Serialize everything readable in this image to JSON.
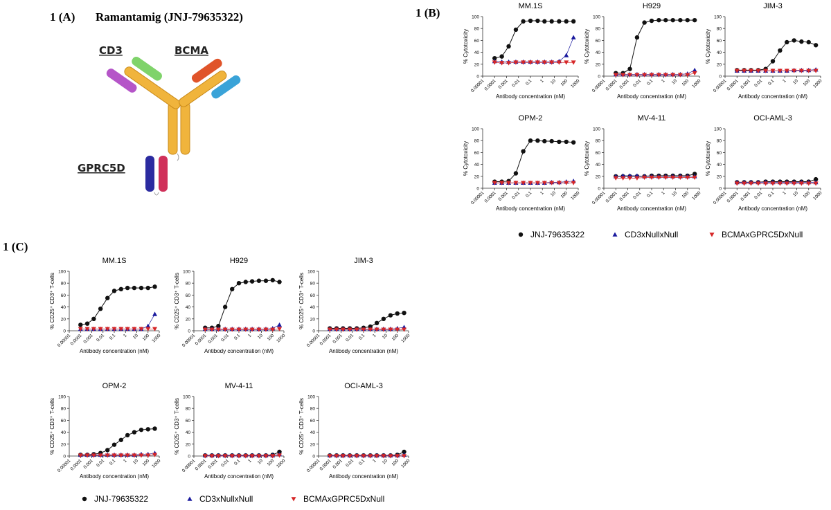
{
  "panel_a": {
    "label": "1 (A)",
    "title": "Ramantamig (JNJ-79635322)",
    "arm_labels": [
      "CD3",
      "BCMA",
      "GPRC5D"
    ]
  },
  "panel_b_label": "1 (B)",
  "panel_c_label": "1 (C)",
  "chart_data": [
    {
      "type": "line",
      "log_x": true,
      "x": [
        0.0001,
        0.0004,
        0.0015,
        0.006,
        0.025,
        0.1,
        0.4,
        1.5,
        6,
        25,
        100,
        400
      ],
      "xlim": [
        1e-05,
        1000
      ],
      "xticks": [
        1e-05,
        0.0001,
        0.001,
        0.01,
        0.1,
        1,
        10,
        100,
        1000
      ],
      "ylim": [
        0,
        100
      ],
      "yticks": [
        0,
        20,
        40,
        60,
        80,
        100
      ],
      "x_label": "Antibody concentration (nM)",
      "y_label": "% Cytotoxicity",
      "series": [
        {
          "name": "JNJ-79635322",
          "color": "#111111",
          "marker": "circle"
        },
        {
          "name": "CD3xNullxNull",
          "color": "#1a1a9e",
          "marker": "triangle-up"
        },
        {
          "name": "BCMAxGPRC5DxNull",
          "color": "#d62728",
          "marker": "triangle-down"
        }
      ],
      "panels": [
        {
          "title": "MM.1S",
          "values": [
            [
              30,
              33,
              50,
              78,
              92,
              93,
              93,
              92,
              92,
              92,
              92,
              92
            ],
            [
              25,
              24,
              24,
              24,
              24,
              24,
              24,
              24,
              24,
              25,
              35,
              65
            ],
            [
              23,
              22,
              22,
              23,
              23,
              23,
              23,
              23,
              23,
              23,
              23,
              23
            ]
          ]
        },
        {
          "title": "H929",
          "values": [
            [
              5,
              5,
              12,
              65,
              90,
              93,
              94,
              94,
              94,
              94,
              94,
              94
            ],
            [
              3,
              3,
              3,
              3,
              3,
              3,
              3,
              3,
              3,
              3,
              4,
              10
            ],
            [
              2,
              2,
              2,
              2,
              2,
              2,
              2,
              2,
              2,
              2,
              2,
              5
            ]
          ]
        },
        {
          "title": "JIM-3",
          "values": [
            [
              10,
              10,
              10,
              10,
              12,
              25,
              43,
              57,
              60,
              58,
              57,
              52
            ],
            [
              9,
              9,
              9,
              9,
              9,
              9,
              9,
              9,
              10,
              10,
              10,
              11
            ],
            [
              9,
              9,
              9,
              9,
              9,
              9,
              9,
              9,
              9,
              9,
              9,
              9
            ]
          ]
        },
        {
          "title": "OPM-2",
          "values": [
            [
              11,
              11,
              12,
              25,
              62,
              80,
              80,
              79,
              79,
              78,
              78,
              77
            ],
            [
              9,
              9,
              9,
              9,
              9,
              9,
              9,
              9,
              10,
              10,
              11,
              12
            ],
            [
              9,
              9,
              9,
              9,
              9,
              9,
              9,
              9,
              9,
              9,
              9,
              9
            ]
          ]
        },
        {
          "title": "MV-4-11",
          "values": [
            [
              20,
              20,
              20,
              20,
              20,
              21,
              21,
              21,
              21,
              21,
              21,
              24
            ],
            [
              20,
              21,
              21,
              21,
              20,
              20,
              20,
              20,
              20,
              20,
              20,
              20
            ],
            [
              17,
              17,
              17,
              17,
              18,
              18,
              18,
              18,
              18,
              18,
              18,
              18
            ]
          ]
        },
        {
          "title": "OCI-AML-3",
          "values": [
            [
              10,
              10,
              10,
              10,
              11,
              11,
              11,
              11,
              11,
              11,
              11,
              15
            ],
            [
              10,
              10,
              10,
              10,
              10,
              10,
              10,
              10,
              10,
              10,
              10,
              10
            ],
            [
              8,
              8,
              8,
              8,
              8,
              8,
              8,
              8,
              8,
              8,
              8,
              8
            ]
          ]
        }
      ]
    },
    {
      "type": "line",
      "log_x": true,
      "x": [
        0.0001,
        0.0004,
        0.0015,
        0.006,
        0.025,
        0.1,
        0.4,
        1.5,
        6,
        25,
        100,
        400
      ],
      "xlim": [
        1e-05,
        1000
      ],
      "xticks": [
        1e-05,
        0.0001,
        0.001,
        0.01,
        0.1,
        1,
        10,
        100,
        1000
      ],
      "ylim": [
        0,
        100
      ],
      "yticks": [
        0,
        20,
        40,
        60,
        80,
        100
      ],
      "x_label": "Antibody concentration (nM)",
      "y_label": "% CD25⁺ CD3⁺ T-cells",
      "series": [
        {
          "name": "JNJ-79635322",
          "color": "#111111",
          "marker": "circle"
        },
        {
          "name": "CD3xNullxNull",
          "color": "#1a1a9e",
          "marker": "triangle-up"
        },
        {
          "name": "BCMAxGPRC5DxNull",
          "color": "#d62728",
          "marker": "triangle-down"
        }
      ],
      "panels": [
        {
          "title": "MM.1S",
          "values": [
            [
              10,
              12,
              20,
              37,
              55,
              67,
              70,
              72,
              72,
              72,
              72,
              74
            ],
            [
              3,
              3,
              3,
              3,
              3,
              3,
              3,
              3,
              3,
              3,
              8,
              28
            ],
            [
              3,
              3,
              3,
              3,
              3,
              3,
              3,
              3,
              3,
              3,
              3,
              3
            ]
          ]
        },
        {
          "title": "H929",
          "values": [
            [
              5,
              5,
              8,
              40,
              70,
              80,
              82,
              83,
              84,
              84,
              85,
              82
            ],
            [
              3,
              3,
              3,
              3,
              3,
              3,
              3,
              3,
              3,
              3,
              4,
              10
            ],
            [
              2,
              2,
              2,
              2,
              2,
              2,
              2,
              2,
              2,
              2,
              2,
              3
            ]
          ]
        },
        {
          "title": "JIM-3",
          "values": [
            [
              4,
              4,
              4,
              4,
              4,
              5,
              7,
              13,
              20,
              26,
              29,
              30
            ],
            [
              3,
              3,
              3,
              3,
              3,
              3,
              3,
              3,
              3,
              3,
              4,
              6
            ],
            [
              2,
              2,
              2,
              2,
              2,
              2,
              2,
              2,
              2,
              2,
              2,
              2
            ]
          ]
        },
        {
          "title": "OPM-2",
          "values": [
            [
              2,
              2,
              3,
              5,
              10,
              19,
              27,
              35,
              40,
              44,
              45,
              46
            ],
            [
              2,
              2,
              2,
              2,
              2,
              2,
              2,
              2,
              2,
              3,
              3,
              5
            ],
            [
              1,
              1,
              1,
              1,
              1,
              1,
              1,
              1,
              1,
              1,
              1,
              2
            ]
          ]
        },
        {
          "title": "MV-4-11",
          "values": [
            [
              1,
              1,
              1,
              1,
              1,
              1,
              1,
              1,
              1,
              1,
              2,
              7
            ],
            [
              1,
              1,
              1,
              1,
              1,
              1,
              1,
              1,
              1,
              1,
              1,
              3
            ],
            [
              0,
              0,
              0,
              0,
              0,
              0,
              0,
              0,
              0,
              0,
              0,
              1
            ]
          ]
        },
        {
          "title": "OCI-AML-3",
          "values": [
            [
              1,
              1,
              1,
              1,
              1,
              1,
              1,
              1,
              1,
              1,
              2,
              7
            ],
            [
              1,
              1,
              1,
              1,
              1,
              1,
              1,
              1,
              1,
              1,
              1,
              2
            ],
            [
              0,
              0,
              0,
              0,
              0,
              0,
              0,
              0,
              0,
              0,
              0,
              0
            ]
          ]
        }
      ]
    }
  ]
}
